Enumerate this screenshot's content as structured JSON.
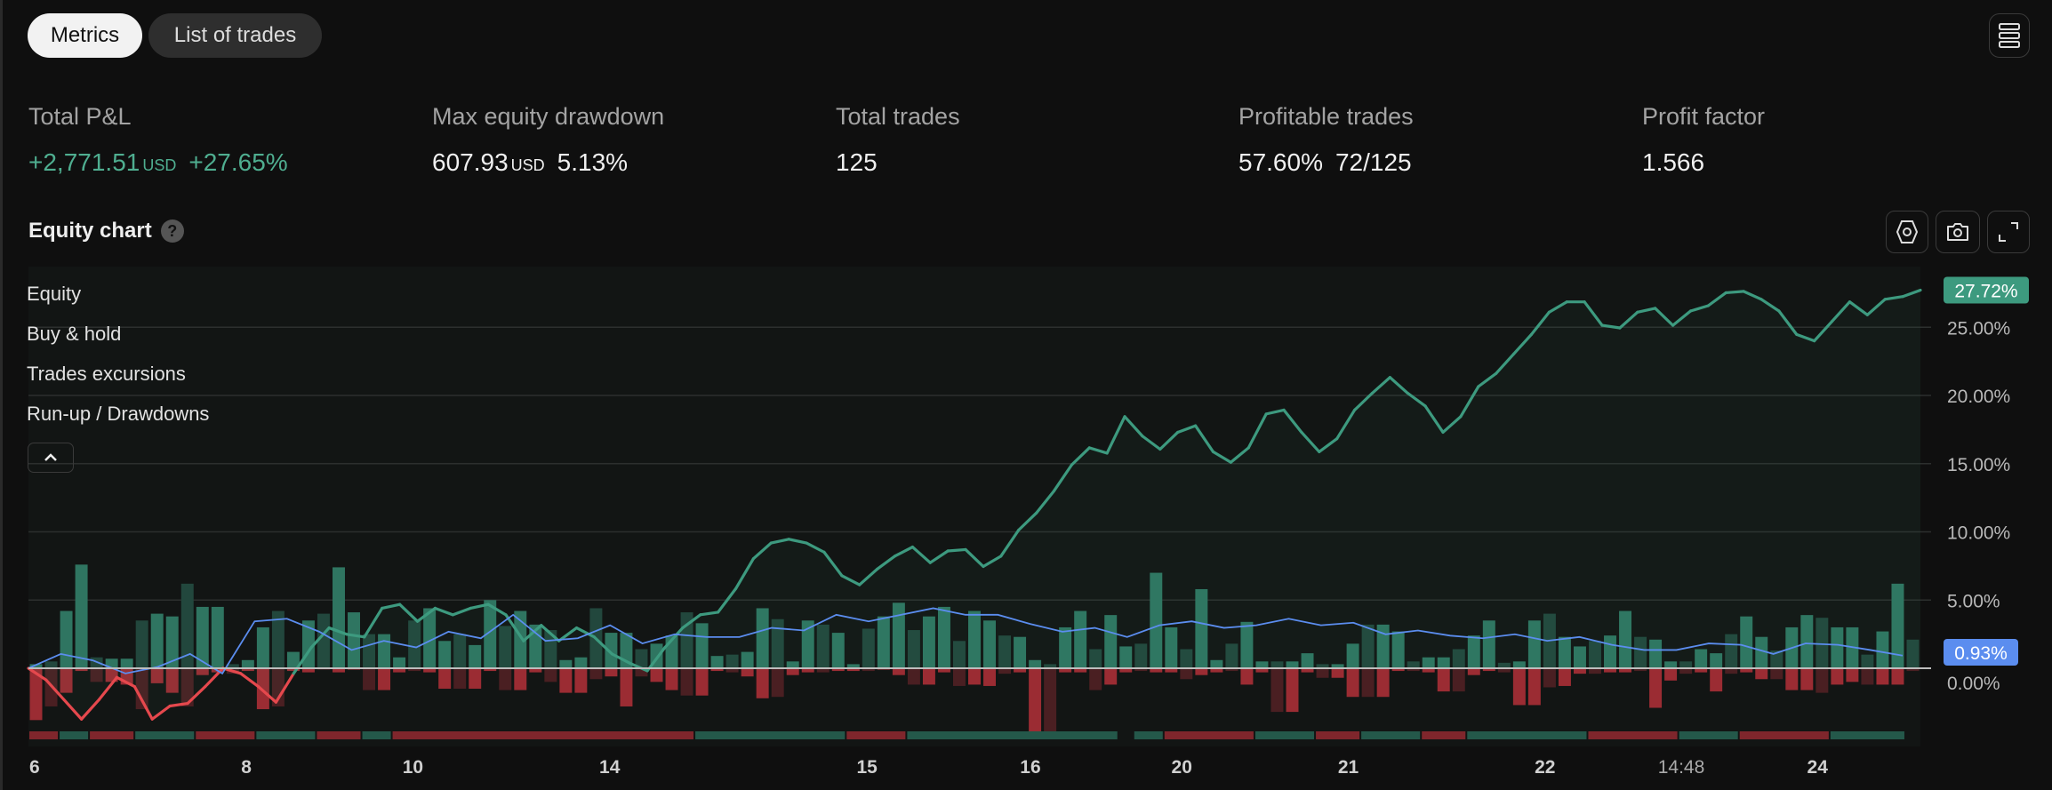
{
  "tabs": [
    {
      "label": "Metrics",
      "active": true
    },
    {
      "label": "List of trades",
      "active": false
    }
  ],
  "metrics": {
    "total_pnl": {
      "label": "Total P&L",
      "value": "+2,771.51",
      "unit": "USD",
      "percent": "+27.65%"
    },
    "max_drawdown": {
      "label": "Max equity drawdown",
      "value": "607.93",
      "unit": "USD",
      "percent": "5.13%"
    },
    "total_trades": {
      "label": "Total trades",
      "value": "125"
    },
    "profitable_trades": {
      "label": "Profitable trades",
      "percent": "57.60%",
      "ratio": "72/125"
    },
    "profit_factor": {
      "label": "Profit factor",
      "value": "1.566"
    }
  },
  "equity_chart": {
    "title": "Equity chart",
    "help_icon": "question-icon",
    "toolbar_icons": [
      "settings-hexagon-icon",
      "camera-icon",
      "fullscreen-icon"
    ],
    "legend": [
      "Equity",
      "Buy & hold",
      "Trades excursions",
      "Run-up / Drawdowns"
    ],
    "collapse_icon": "chevron-up-icon"
  },
  "colors": {
    "equity": "#3d9a7f",
    "equity_negative": "#e5484d",
    "buy_hold": "#5b8def",
    "runup": "#2f7561",
    "runup_dark": "#22473d",
    "drawdown": "#9b2c33",
    "drawdown_dark": "#4a1f22",
    "strip_win": "#24584a",
    "strip_loss": "#7f262c"
  },
  "chart_data": {
    "type": "line",
    "xlabel": "",
    "ylabel": "",
    "ylim": [
      -5.7,
      29.4
    ],
    "yticks": [
      "0.00%",
      "5.00%",
      "10.00%",
      "15.00%",
      "20.00%",
      "25.00%"
    ],
    "ytick_values": [
      0,
      5,
      10,
      15,
      20,
      25
    ],
    "xticks": [
      {
        "label": "6",
        "trade": 0.4
      },
      {
        "label": "8",
        "trade": 14.4
      },
      {
        "label": "10",
        "trade": 25.4
      },
      {
        "label": "14",
        "trade": 38.4
      },
      {
        "label": "15",
        "trade": 55.4
      },
      {
        "label": "16",
        "trade": 66.2
      },
      {
        "label": "20",
        "trade": 76.2
      },
      {
        "label": "21",
        "trade": 87.2
      },
      {
        "label": "22",
        "trade": 100.2
      },
      {
        "label": "14:48",
        "trade": 109.2
      },
      {
        "label": "24",
        "trade": 118.2
      }
    ],
    "trade_count": 125,
    "equity_last_label": "27.72%",
    "buy_hold_last_label": "0.93%",
    "equity": [
      0,
      -0.86,
      -2.29,
      -3.73,
      -2.29,
      -0.67,
      -1.34,
      -3.73,
      -2.77,
      -2.58,
      -1.34,
      0,
      -0.38,
      -1.34,
      -2.49,
      -0.38,
      1.53,
      2.96,
      2.49,
      2.29,
      4.4,
      4.68,
      3.44,
      4.4,
      3.92,
      4.4,
      4.68,
      3.92,
      2.01,
      3.15,
      2.01,
      2.96,
      2.29,
      1.05,
      0.38,
      -0.19,
      1.53,
      2.96,
      3.92,
      4.11,
      5.83,
      8.03,
      9.18,
      9.46,
      9.18,
      8.51,
      6.79,
      6.12,
      7.27,
      8.22,
      8.89,
      7.74,
      8.6,
      8.7,
      7.46,
      8.22,
      10.13,
      11.38,
      13.0,
      14.91,
      16.16,
      15.77,
      18.45,
      17.02,
      16.06,
      17.3,
      17.78,
      15.87,
      15.1,
      16.16,
      18.64,
      18.93,
      17.3,
      15.87,
      16.83,
      18.93,
      20.17,
      21.32,
      20.17,
      19.22,
      17.3,
      18.45,
      20.65,
      21.61,
      23.04,
      24.47,
      26.1,
      26.86,
      26.86,
      25.14,
      24.95,
      26.1,
      26.39,
      25.14,
      26.19,
      26.58,
      27.53,
      27.63,
      27.05,
      26.19,
      24.47,
      24.0,
      25.43,
      26.86,
      25.91,
      27.05,
      27.25,
      27.72
    ],
    "buy_hold": [
      0,
      1.05,
      0.57,
      -0.38,
      0.1,
      1.05,
      -0.38,
      3.44,
      3.63,
      2.68,
      1.34,
      2.01,
      1.53,
      2.68,
      2.2,
      3.92,
      2.01,
      2.2,
      3.15,
      1.82,
      2.49,
      2.29,
      2.29,
      2.96,
      2.77,
      3.92,
      3.44,
      3.92,
      4.4,
      3.92,
      3.92,
      3.25,
      2.68,
      2.96,
      2.29,
      3.15,
      3.44,
      2.96,
      3.15,
      3.63,
      3.15,
      3.34,
      2.49,
      2.77,
      2.39,
      2.2,
      2.49,
      2.01,
      2.29,
      1.72,
      1.34,
      1.34,
      1.82,
      1.72,
      1.05,
      1.82,
      1.72,
      1.34,
      0.93
    ],
    "runup": [
      0.3,
      0.5,
      4.2,
      7.6,
      0.8,
      0.7,
      0.7,
      3.5,
      4.0,
      3.8,
      6.2,
      4.5,
      4.5,
      0.3,
      0.6,
      3.0,
      4.2,
      1.2,
      3.5,
      4.0,
      7.4,
      4.1,
      2.5,
      2.5,
      0.8,
      3.5,
      4.4,
      2.0,
      2.5,
      1.7,
      5.0,
      3.1,
      4.2,
      3.2,
      2.8,
      0.6,
      0.8,
      4.4,
      2.6,
      2.6,
      1.4,
      1.8,
      2.4,
      4.1,
      3.3,
      0.9,
      1.0,
      1.2,
      4.4,
      3.6,
      0.5,
      3.5,
      3.2,
      2.6,
      0.3,
      2.9,
      3.8,
      4.8,
      2.8,
      3.8,
      4.5,
      2.0,
      4.2,
      3.5,
      2.4,
      2.3,
      0.6,
      0.3,
      3.0,
      4.2,
      1.4,
      3.9,
      1.6,
      1.8,
      7.0,
      3.0,
      1.4,
      5.8,
      0.6,
      1.8,
      3.4,
      0.5,
      0.5,
      0.5,
      1.1,
      0.3,
      0.3,
      1.8,
      3.2,
      3.2,
      2.7,
      0.5,
      0.8,
      0.8,
      1.4,
      2.4,
      3.5,
      0.4,
      0.5,
      3.5,
      4.0,
      2.3,
      1.6,
      2.0,
      2.4,
      4.2,
      2.3,
      2.1,
      0.5,
      0.5,
      1.4,
      1.1,
      2.5,
      3.8,
      2.3,
      1.3,
      3.0,
      3.9,
      3.7,
      3.0,
      3.0,
      1.0,
      2.7,
      6.2,
      2.1,
      2.3,
      2.6,
      0.4
    ],
    "drawdown": [
      -3.8,
      -2.8,
      -1.8,
      -0.2,
      -1.0,
      -1.0,
      -1.2,
      -3.0,
      -1.1,
      -1.8,
      -2.8,
      -0.5,
      -0.3,
      -0.4,
      -0.2,
      -3.0,
      -2.8,
      -0.2,
      -0.3,
      -0.1,
      -0.3,
      -0.1,
      -1.6,
      -1.6,
      -0.3,
      -0.2,
      -0.3,
      -1.5,
      -1.5,
      -1.5,
      -0.2,
      -1.6,
      -1.6,
      -0.3,
      -1.0,
      -1.8,
      -1.8,
      -0.8,
      -0.6,
      -2.8,
      -0.6,
      -1.0,
      -1.6,
      -2.0,
      -2.0,
      -0.2,
      -0.3,
      -0.6,
      -2.2,
      -2.1,
      -0.5,
      -0.3,
      -0.3,
      -0.2,
      -0.2,
      -0.2,
      -0.1,
      -0.5,
      -1.2,
      -1.2,
      -0.3,
      -1.3,
      -1.2,
      -1.3,
      -0.4,
      -0.3,
      -5.0,
      -5.0,
      -0.3,
      -0.3,
      -1.6,
      -1.2,
      -0.3,
      -0.2,
      -0.3,
      -0.3,
      -0.8,
      -0.5,
      -0.3,
      -0.2,
      -1.2,
      -0.3,
      -3.2,
      -3.2,
      -0.3,
      -0.7,
      -0.7,
      -2.1,
      -2.1,
      -2.1,
      -0.2,
      -0.2,
      -0.3,
      -1.7,
      -1.7,
      -0.5,
      -0.2,
      -0.3,
      -2.7,
      -2.7,
      -1.4,
      -1.3,
      -0.4,
      -0.4,
      -0.3,
      -0.3,
      -0.2,
      -2.9,
      -0.9,
      -0.4,
      -0.3,
      -1.7,
      -0.4,
      -0.3,
      -0.8,
      -0.8,
      -1.6,
      -1.6,
      -1.8,
      -1.2,
      -1.0,
      -1.2,
      -1.2,
      -1.2,
      -0.2
    ],
    "period_strip": [
      {
        "result": "loss",
        "trades": 2
      },
      {
        "result": "win",
        "trades": 2
      },
      {
        "result": "loss",
        "trades": 3
      },
      {
        "result": "win",
        "trades": 4
      },
      {
        "result": "loss",
        "trades": 4
      },
      {
        "result": "win",
        "trades": 4
      },
      {
        "result": "loss",
        "trades": 3
      },
      {
        "result": "win",
        "trades": 2
      },
      {
        "result": "loss",
        "trades": 20
      },
      {
        "result": "win",
        "trades": 10
      },
      {
        "result": "loss",
        "trades": 4
      },
      {
        "result": "win",
        "trades": 14
      },
      {
        "result": "gap",
        "trades": 1
      },
      {
        "result": "win",
        "trades": 2
      },
      {
        "result": "loss",
        "trades": 6
      },
      {
        "result": "win",
        "trades": 4
      },
      {
        "result": "loss",
        "trades": 3
      },
      {
        "result": "win",
        "trades": 4
      },
      {
        "result": "loss",
        "trades": 3
      },
      {
        "result": "win",
        "trades": 8
      },
      {
        "result": "loss",
        "trades": 6
      },
      {
        "result": "win",
        "trades": 4
      },
      {
        "result": "loss",
        "trades": 6
      },
      {
        "result": "win",
        "trades": 5
      }
    ]
  }
}
